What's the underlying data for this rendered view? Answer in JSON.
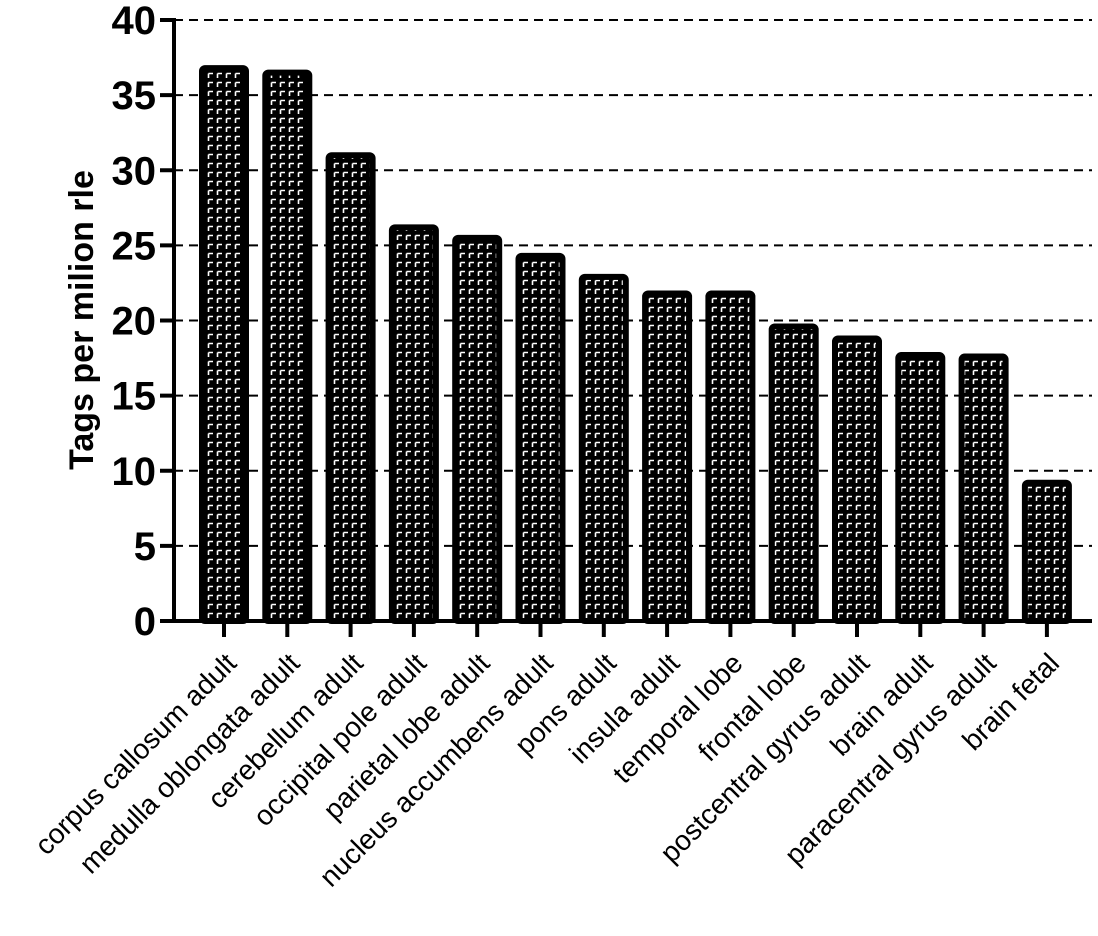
{
  "chart_data": {
    "type": "bar",
    "title": "",
    "xlabel": "",
    "ylabel": "Tags per milion rle",
    "ylim": [
      0,
      40
    ],
    "yticks": [
      0,
      5,
      10,
      15,
      20,
      25,
      30,
      35,
      40
    ],
    "grid": "dashed horizontal",
    "categories": [
      "corpus callosum adult",
      "medulla oblongata adult",
      "cerebellum adult",
      "occipital pole adult",
      "parietal lobe adult",
      "nucleus accumbens adult",
      "pons adult",
      "insula adult",
      "temporal lobe",
      "frontal lobe",
      "postcentral gyrus adult",
      "brain adult",
      "paracentral gyrus adult",
      "brain fetal"
    ],
    "values": [
      36.8,
      36.5,
      31.0,
      26.2,
      25.5,
      24.3,
      22.9,
      21.8,
      21.8,
      19.6,
      18.8,
      17.7,
      17.6,
      9.2
    ],
    "colors": {
      "bar": "#000000",
      "pattern": "#ffffff",
      "grid": "#000000"
    }
  }
}
